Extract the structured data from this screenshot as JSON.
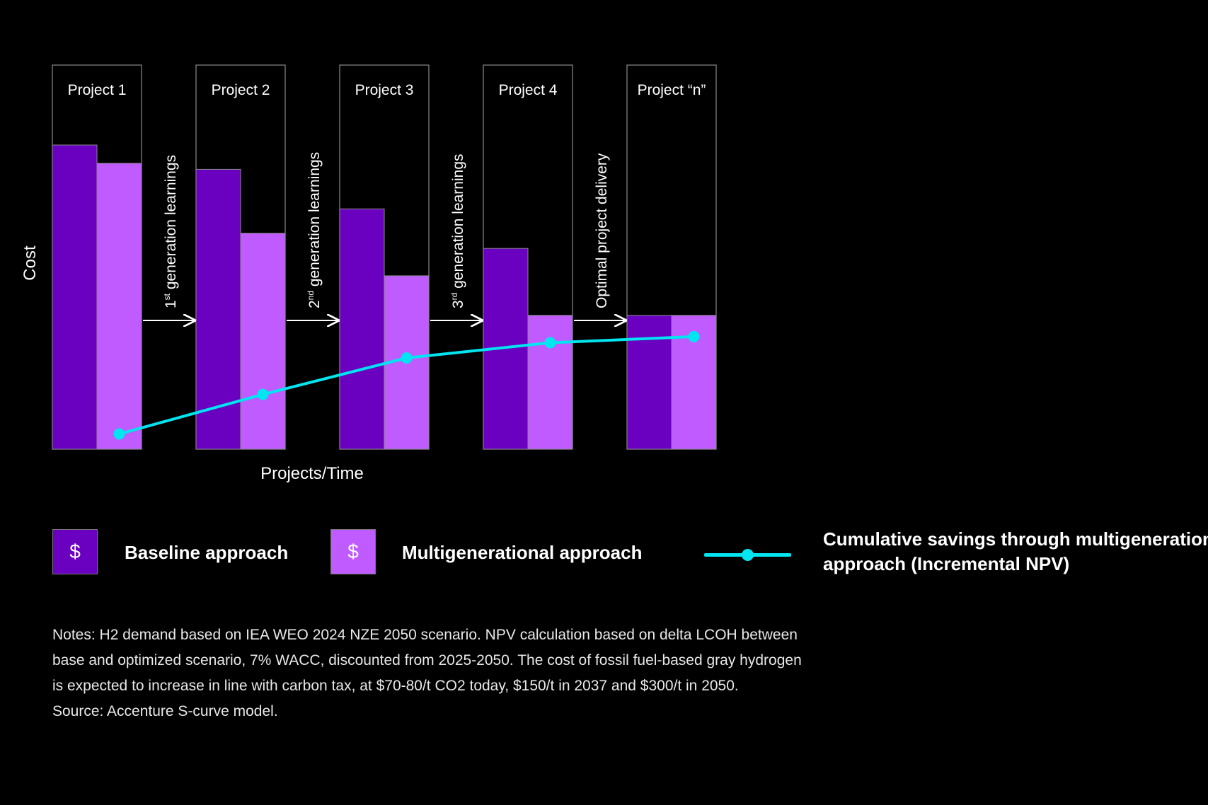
{
  "chart_data": {
    "type": "bar",
    "ylabel": "Cost",
    "xlabel": "Projects/Time",
    "categories": [
      "Project 1",
      "Project 2",
      "Project 3",
      "Project 4",
      "Project “n”"
    ],
    "series": [
      {
        "name": "Baseline approach",
        "type": "bar",
        "color": "#6a00c0",
        "values": [
          100,
          92,
          79,
          66,
          44
        ]
      },
      {
        "name": "Multigenerational approach",
        "type": "bar",
        "color": "#bf5bff",
        "values": [
          94,
          71,
          57,
          44,
          44
        ]
      },
      {
        "name": "Cumulative savings through multigenerational approach (Incremental NPV)",
        "type": "line",
        "color": "#00e5f0",
        "values": [
          5,
          18,
          30,
          35,
          37
        ]
      }
    ],
    "ylim": [
      0,
      125
    ],
    "transitions": [
      {
        "label": "generation learnings",
        "ordinal": "1",
        "suffix": "st"
      },
      {
        "label": "generation learnings",
        "ordinal": "2",
        "suffix": "nd"
      },
      {
        "label": "generation learnings",
        "ordinal": "3",
        "suffix": "rd"
      },
      {
        "label": "Optimal project delivery",
        "ordinal": "",
        "suffix": ""
      }
    ],
    "grid": false
  },
  "legend": {
    "symbol": "$",
    "baseline_label": "Baseline approach",
    "multigen_label": "Multigenerational approach",
    "savings_line1": "Cumulative savings through multigenerational",
    "savings_line2": "approach (Incremental NPV)"
  },
  "notes": {
    "line1": "Notes: H2 demand based on IEA WEO 2024 NZE 2050 scenario. NPV calculation based on delta LCOH between",
    "line2": "base and optimized scenario, 7% WACC, discounted from 2025-2050. The cost of fossil fuel-based gray hydrogen",
    "line3": "is expected to increase in line with carbon tax, at $70-80/t CO2 today, $150/t in 2037 and $300/t in 2050.",
    "line4": "Source: Accenture S-curve model."
  }
}
